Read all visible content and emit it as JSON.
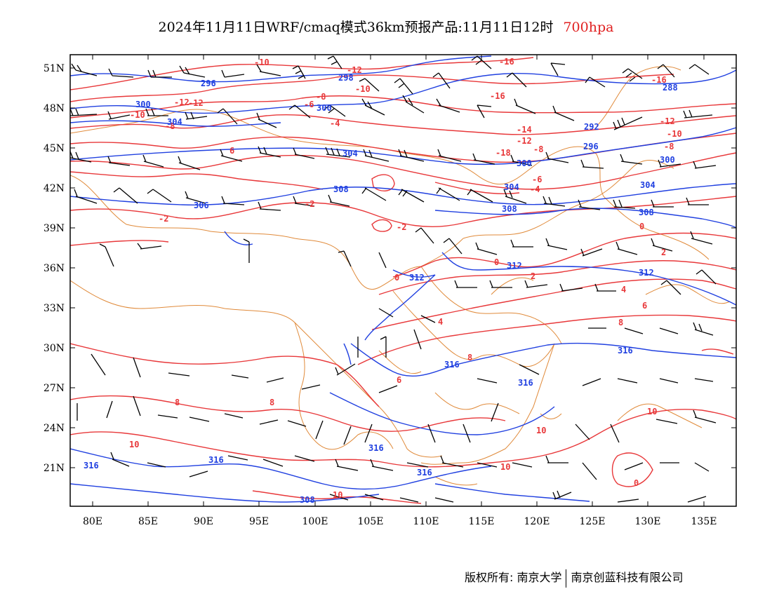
{
  "title": {
    "main": "2024年11月11日WRF/cmaq模式36km预报产品:11月11日12时",
    "level": "700hpa"
  },
  "colors": {
    "temperature": "#e8383a",
    "height": "#2040e0",
    "border": "#e08a3a",
    "barb": "#000000",
    "level_text": "#e02020"
  },
  "axes": {
    "y_ticks": [
      "51N",
      "48N",
      "45N",
      "42N",
      "39N",
      "36N",
      "33N",
      "30N",
      "27N",
      "24N",
      "21N"
    ],
    "x_ticks": [
      "80E",
      "85E",
      "90E",
      "95E",
      "100E",
      "105E",
      "110E",
      "115E",
      "120E",
      "125E",
      "130E",
      "135E"
    ]
  },
  "temperature_labels": [
    "-10",
    "-12",
    "-10",
    "-8",
    "-6",
    "-4",
    "-16",
    "-16",
    "-18",
    "-16",
    "-12",
    "-8",
    "-14",
    "-12",
    "-10",
    "-8",
    "-8",
    "-6",
    "-4",
    "-12",
    "-10",
    "-2",
    "-2",
    "-2",
    "0",
    "0",
    "0",
    "2",
    "2",
    "4",
    "4",
    "6",
    "6",
    "8",
    "8",
    "6",
    "8",
    "8",
    "10",
    "10",
    "10",
    "10",
    "10",
    "0",
    "-12"
  ],
  "height_labels": [
    "296",
    "300",
    "304",
    "298",
    "300",
    "304",
    "308",
    "308",
    "306",
    "292",
    "296",
    "288",
    "300",
    "304",
    "308",
    "304",
    "312",
    "312",
    "312",
    "316",
    "316",
    "316",
    "316",
    "316",
    "316",
    "316",
    "300",
    "308"
  ],
  "footer": {
    "left": "版权所有: 南京大学",
    "right": "南京创蓝科技有限公司"
  }
}
